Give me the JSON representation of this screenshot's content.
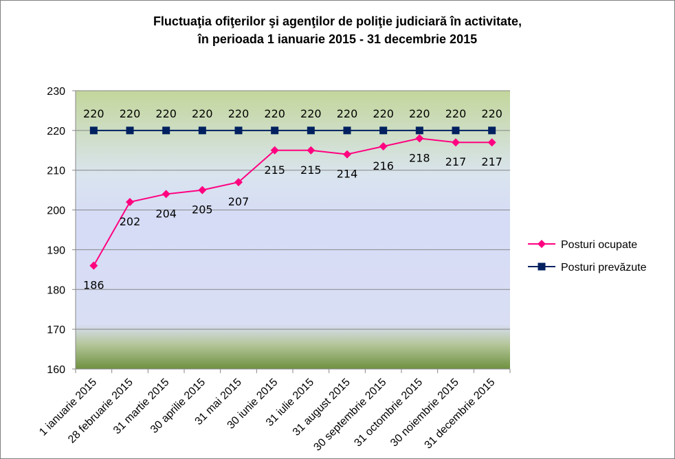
{
  "chart_data": {
    "type": "line",
    "title": [
      "Fluctuaţia ofiţerilor şi agenţilor de poliţie judiciară în activitate,",
      "în perioada 1 ianuarie 2015 - 31 decembrie 2015"
    ],
    "categories": [
      "1 ianuarie 2015",
      "28 februarie 2015",
      "31 martie 2015",
      "30 aprilie 2015",
      "31 mai 2015",
      "30 iunie 2015",
      "31 iulie 2015",
      "31 august 2015",
      "30 septembrie 2015",
      "31 octombrie 2015",
      "30 noiembrie 2015",
      "31 decembrie 2015"
    ],
    "series": [
      {
        "name": "Posturi ocupate",
        "values": [
          186,
          202,
          204,
          205,
          207,
          215,
          215,
          214,
          216,
          218,
          217,
          217
        ],
        "color": "#ff0080",
        "marker": "diamond",
        "label_position": "below"
      },
      {
        "name": "Posturi prevăzute",
        "values": [
          220,
          220,
          220,
          220,
          220,
          220,
          220,
          220,
          220,
          220,
          220,
          220
        ],
        "color": "#002060",
        "marker": "square",
        "label_position": "above"
      }
    ],
    "ylim": [
      160,
      230
    ],
    "yticks": [
      160,
      170,
      180,
      190,
      200,
      210,
      220,
      230
    ],
    "grid": true,
    "legend_position": "right",
    "data_labels": true
  }
}
